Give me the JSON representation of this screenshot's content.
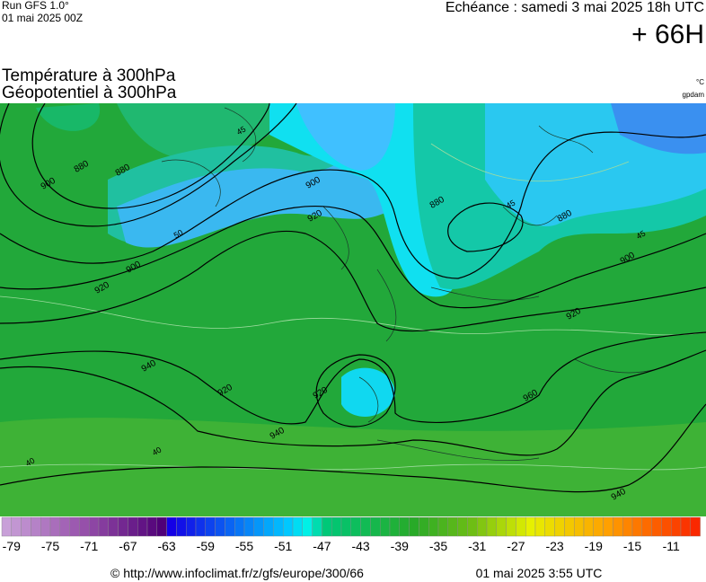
{
  "header": {
    "run": "Run GFS 1.0°",
    "run_date": "01 mai 2025 00Z",
    "valid": "Echéance : samedi 3 mai 2025 18h UTC",
    "lead": "+ 66H"
  },
  "title": {
    "line1": "Température à 300hPa",
    "line2": "Géopotentiel à 300hPa",
    "unit_temp": "°C",
    "unit_geo": "gpdam"
  },
  "map": {
    "contour_labels": [
      880,
      880,
      900,
      900,
      900,
      920,
      920,
      920,
      920,
      940,
      940,
      960,
      880,
      880,
      900,
      920,
      940,
      45,
      45,
      45,
      40,
      40,
      50
    ]
  },
  "colorbar": {
    "labels": [
      -79,
      -75,
      -71,
      -67,
      -63,
      -59,
      -55,
      -51,
      -47,
      -43,
      -39,
      -35,
      -31,
      -27,
      -23,
      -19,
      -15,
      -11
    ]
  },
  "footer": {
    "url": "© http://www.infoclimat.fr/z/gfs/europe/300/66",
    "generated": "01 mai 2025  3:55 UTC"
  }
}
